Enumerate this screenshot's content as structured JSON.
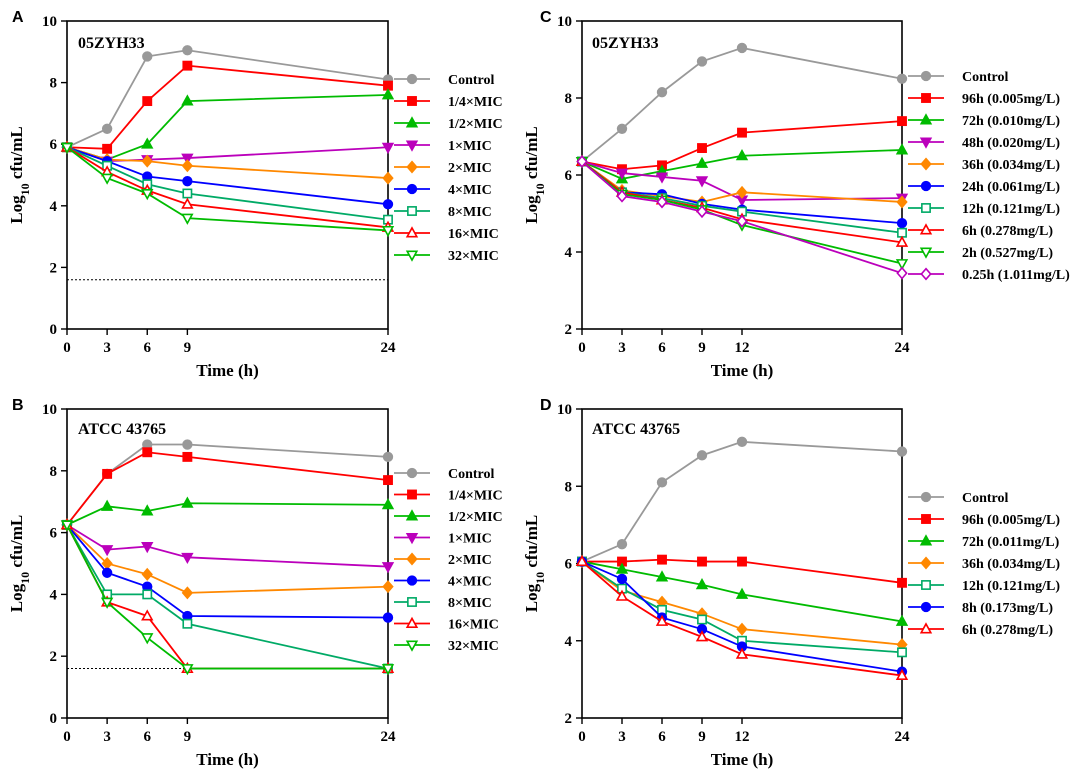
{
  "chart_data": [
    {
      "panel": "A",
      "type": "line",
      "strain_label": "05ZYH33",
      "xlabel": "Time (h)",
      "ylabel": "Log10 cfu/mL",
      "xlim": [
        0,
        24
      ],
      "ylim": [
        0,
        10
      ],
      "xticks": [
        0,
        3,
        6,
        9,
        24
      ],
      "yticks": [
        0,
        2,
        4,
        6,
        8,
        10
      ],
      "detection_limit": 1.6,
      "x": [
        0,
        3,
        6,
        9,
        24
      ],
      "series": [
        {
          "name": "Control",
          "color": "#999999",
          "marker": "circle",
          "filled": true,
          "values": [
            5.9,
            6.5,
            8.85,
            9.05,
            8.1
          ]
        },
        {
          "name": "1/4×MIC",
          "color": "#ff0000",
          "marker": "square",
          "filled": true,
          "values": [
            5.9,
            5.85,
            7.4,
            8.55,
            7.9
          ]
        },
        {
          "name": "1/2×MIC",
          "color": "#00bb00",
          "marker": "triangle-up",
          "filled": true,
          "values": [
            5.9,
            5.5,
            6.0,
            7.4,
            7.6
          ]
        },
        {
          "name": "1×MIC",
          "color": "#bb00bb",
          "marker": "triangle-down",
          "filled": true,
          "values": [
            5.9,
            5.45,
            5.5,
            5.55,
            5.9
          ]
        },
        {
          "name": "2×MIC",
          "color": "#ff8800",
          "marker": "diamond",
          "filled": true,
          "values": [
            5.9,
            5.5,
            5.45,
            5.3,
            4.9
          ]
        },
        {
          "name": "4×MIC",
          "color": "#0000ff",
          "marker": "circle",
          "filled": true,
          "values": [
            5.9,
            5.45,
            4.95,
            4.8,
            4.05
          ]
        },
        {
          "name": "8×MIC",
          "color": "#00aa66",
          "marker": "square",
          "filled": false,
          "values": [
            5.9,
            5.3,
            4.7,
            4.4,
            3.55
          ]
        },
        {
          "name": "16×MIC",
          "color": "#ff0000",
          "marker": "triangle-up",
          "filled": false,
          "values": [
            5.9,
            5.1,
            4.5,
            4.05,
            3.3
          ]
        },
        {
          "name": "32×MIC",
          "color": "#00bb00",
          "marker": "triangle-down",
          "filled": false,
          "values": [
            5.9,
            4.9,
            4.4,
            3.6,
            3.2
          ]
        }
      ]
    },
    {
      "panel": "B",
      "type": "line",
      "strain_label": "ATCC 43765",
      "xlabel": "Time (h)",
      "ylabel": "Log10 cfu/mL",
      "xlim": [
        0,
        24
      ],
      "ylim": [
        0,
        10
      ],
      "xticks": [
        0,
        3,
        6,
        9,
        24
      ],
      "yticks": [
        0,
        2,
        4,
        6,
        8,
        10
      ],
      "detection_limit": 1.6,
      "x": [
        0,
        3,
        6,
        9,
        24
      ],
      "series": [
        {
          "name": "Control",
          "color": "#999999",
          "marker": "circle",
          "filled": true,
          "values": [
            6.25,
            7.9,
            8.85,
            8.85,
            8.45
          ]
        },
        {
          "name": "1/4×MIC",
          "color": "#ff0000",
          "marker": "square",
          "filled": true,
          "values": [
            6.25,
            7.9,
            8.6,
            8.45,
            7.7
          ]
        },
        {
          "name": "1/2×MIC",
          "color": "#00bb00",
          "marker": "triangle-up",
          "filled": true,
          "values": [
            6.25,
            6.85,
            6.7,
            6.95,
            6.9
          ]
        },
        {
          "name": "1×MIC",
          "color": "#bb00bb",
          "marker": "triangle-down",
          "filled": true,
          "values": [
            6.25,
            5.45,
            5.55,
            5.2,
            4.9
          ]
        },
        {
          "name": "2×MIC",
          "color": "#ff8800",
          "marker": "diamond",
          "filled": true,
          "values": [
            6.25,
            5.0,
            4.65,
            4.05,
            4.25
          ]
        },
        {
          "name": "4×MIC",
          "color": "#0000ff",
          "marker": "circle",
          "filled": true,
          "values": [
            6.25,
            4.7,
            4.25,
            3.3,
            3.25
          ]
        },
        {
          "name": "8×MIC",
          "color": "#00aa66",
          "marker": "square",
          "filled": false,
          "values": [
            6.25,
            4.0,
            4.0,
            3.05,
            1.6
          ]
        },
        {
          "name": "16×MIC",
          "color": "#ff0000",
          "marker": "triangle-up",
          "filled": false,
          "values": [
            6.25,
            3.75,
            3.3,
            1.6,
            1.6
          ]
        },
        {
          "name": "32×MIC",
          "color": "#00bb00",
          "marker": "triangle-down",
          "filled": false,
          "values": [
            6.25,
            3.75,
            2.6,
            1.6,
            1.6
          ]
        }
      ]
    },
    {
      "panel": "C",
      "type": "line",
      "strain_label": "05ZYH33",
      "xlabel": "Time (h)",
      "ylabel": "Log10 cfu/mL",
      "xlim": [
        0,
        24
      ],
      "ylim": [
        2,
        10
      ],
      "xticks": [
        0,
        3,
        6,
        9,
        12,
        24
      ],
      "yticks": [
        2,
        4,
        6,
        8,
        10
      ],
      "x": [
        0,
        3,
        6,
        9,
        12,
        24
      ],
      "series": [
        {
          "name": "Control",
          "color": "#999999",
          "marker": "circle",
          "filled": true,
          "values": [
            6.35,
            7.2,
            8.15,
            8.95,
            9.3,
            8.5
          ]
        },
        {
          "name": "96h (0.005mg/L)",
          "color": "#ff0000",
          "marker": "square",
          "filled": true,
          "values": [
            6.35,
            6.15,
            6.25,
            6.7,
            7.1,
            7.4
          ]
        },
        {
          "name": "72h (0.010mg/L)",
          "color": "#00bb00",
          "marker": "triangle-up",
          "filled": true,
          "values": [
            6.35,
            5.9,
            6.1,
            6.3,
            6.5,
            6.65
          ]
        },
        {
          "name": "48h (0.020mg/L)",
          "color": "#bb00bb",
          "marker": "triangle-down",
          "filled": true,
          "values": [
            6.35,
            6.05,
            5.95,
            5.85,
            5.35,
            5.4
          ]
        },
        {
          "name": "36h (0.034mg/L)",
          "color": "#ff8800",
          "marker": "diamond",
          "filled": true,
          "values": [
            6.35,
            5.6,
            5.45,
            5.3,
            5.55,
            5.3
          ]
        },
        {
          "name": "24h (0.061mg/L)",
          "color": "#0000ff",
          "marker": "circle",
          "filled": true,
          "values": [
            6.35,
            5.55,
            5.5,
            5.25,
            5.1,
            4.75
          ]
        },
        {
          "name": "12h (0.121mg/L)",
          "color": "#00aa66",
          "marker": "square",
          "filled": false,
          "values": [
            6.35,
            5.55,
            5.4,
            5.2,
            5.05,
            4.5
          ]
        },
        {
          "name": "6h (0.278mg/L)",
          "color": "#ff0000",
          "marker": "triangle-up",
          "filled": false,
          "values": [
            6.35,
            5.55,
            5.35,
            5.15,
            4.85,
            4.25
          ]
        },
        {
          "name": "2h (0.527mg/L)",
          "color": "#00bb00",
          "marker": "triangle-down",
          "filled": false,
          "values": [
            6.35,
            5.5,
            5.35,
            5.1,
            4.7,
            3.7
          ]
        },
        {
          "name": "0.25h (1.011mg/L)",
          "color": "#bb00bb",
          "marker": "diamond",
          "filled": false,
          "values": [
            6.35,
            5.45,
            5.3,
            5.05,
            4.8,
            3.45
          ]
        }
      ]
    },
    {
      "panel": "D",
      "type": "line",
      "strain_label": "ATCC 43765",
      "xlabel": "Time (h)",
      "ylabel": "Log10 cfu/mL",
      "xlim": [
        0,
        24
      ],
      "ylim": [
        2,
        10
      ],
      "xticks": [
        0,
        3,
        6,
        9,
        12,
        24
      ],
      "yticks": [
        2,
        4,
        6,
        8,
        10
      ],
      "x": [
        0,
        3,
        6,
        9,
        12,
        24
      ],
      "series": [
        {
          "name": "Control",
          "color": "#999999",
          "marker": "circle",
          "filled": true,
          "values": [
            6.05,
            6.5,
            8.1,
            8.8,
            9.15,
            8.9
          ]
        },
        {
          "name": "96h (0.005mg/L)",
          "color": "#ff0000",
          "marker": "square",
          "filled": true,
          "values": [
            6.05,
            6.05,
            6.1,
            6.05,
            6.05,
            5.5
          ]
        },
        {
          "name": "72h (0.011mg/L)",
          "color": "#00bb00",
          "marker": "triangle-up",
          "filled": true,
          "values": [
            6.05,
            5.85,
            5.65,
            5.45,
            5.2,
            4.5
          ]
        },
        {
          "name": "36h (0.034mg/L)",
          "color": "#ff8800",
          "marker": "diamond",
          "filled": true,
          "values": [
            6.05,
            5.3,
            5.0,
            4.7,
            4.3,
            3.9
          ]
        },
        {
          "name": "12h (0.121mg/L)",
          "color": "#00aa66",
          "marker": "square",
          "filled": false,
          "values": [
            6.05,
            5.35,
            4.8,
            4.55,
            4.0,
            3.7
          ]
        },
        {
          "name": "8h (0.173mg/L)",
          "color": "#0000ff",
          "marker": "circle",
          "filled": true,
          "values": [
            6.05,
            5.6,
            4.6,
            4.3,
            3.85,
            3.2
          ]
        },
        {
          "name": "6h (0.278mg/L)",
          "color": "#ff0000",
          "marker": "triangle-up",
          "filled": false,
          "values": [
            6.05,
            5.15,
            4.5,
            4.1,
            3.65,
            3.1
          ]
        }
      ]
    }
  ]
}
